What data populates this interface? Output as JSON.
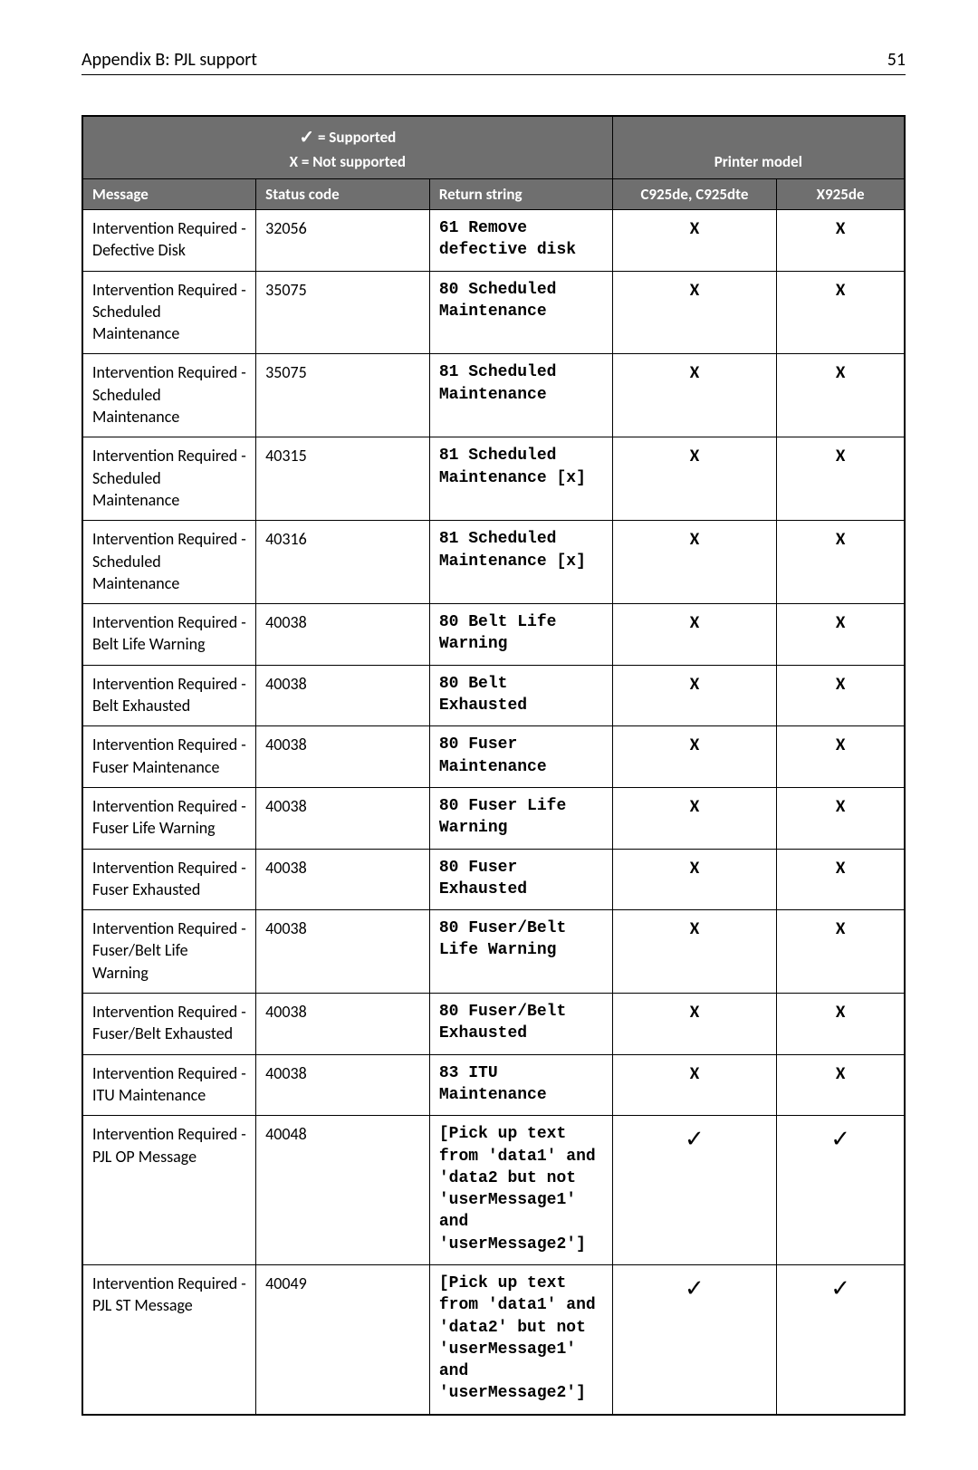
{
  "header": {
    "left": "Appendix B: PJL support",
    "page_number": "51"
  },
  "legend": {
    "supported_glyph": "✓",
    "supported_label": "= Supported",
    "not_supported_label": "X = Not supported",
    "printer_model_label": "Printer model"
  },
  "columns": {
    "message": "Message",
    "status": "Status code",
    "return": "Return string",
    "model1": "C925de, C925dte",
    "model2": "X925de"
  },
  "marks": {
    "x": "X",
    "check": "✓"
  },
  "rows": [
    {
      "message": "Intervention Required - Defective Disk",
      "status": "32056",
      "return": "61 Remove defective disk",
      "m1": "x",
      "m2": "x"
    },
    {
      "message": "Intervention Required - Scheduled Maintenance",
      "status": "35075",
      "return": "80 Scheduled Maintenance",
      "m1": "x",
      "m2": "x"
    },
    {
      "message": "Intervention Required - Scheduled Maintenance",
      "status": "35075",
      "return": "81 Scheduled Maintenance",
      "m1": "x",
      "m2": "x"
    },
    {
      "message": "Intervention Required - Scheduled Maintenance",
      "status": "40315",
      "return": "81 Scheduled Maintenance [x]",
      "m1": "x",
      "m2": "x"
    },
    {
      "message": "Intervention Required - Scheduled Maintenance",
      "status": "40316",
      "return": "81 Scheduled Maintenance [x]",
      "m1": "x",
      "m2": "x"
    },
    {
      "message": "Intervention Required - Belt Life Warning",
      "status": "40038",
      "return": "80 Belt Life Warning",
      "m1": "x",
      "m2": "x"
    },
    {
      "message": "Intervention Required - Belt Exhausted",
      "status": "40038",
      "return": "80 Belt Exhausted",
      "m1": "x",
      "m2": "x"
    },
    {
      "message": "Intervention Required - Fuser Maintenance",
      "status": "40038",
      "return": "80 Fuser Maintenance",
      "m1": "x",
      "m2": "x"
    },
    {
      "message": "Intervention Required - Fuser Life Warning",
      "status": "40038",
      "return": "80 Fuser Life Warning",
      "m1": "x",
      "m2": "x"
    },
    {
      "message": "Intervention Required - Fuser Exhausted",
      "status": "40038",
      "return": "80 Fuser Exhausted",
      "m1": "x",
      "m2": "x"
    },
    {
      "message": "Intervention Required - Fuser/Belt Life Warning",
      "status": "40038",
      "return": "80 Fuser/Belt Life Warning",
      "m1": "x",
      "m2": "x"
    },
    {
      "message": "Intervention Required - Fuser/Belt Exhausted",
      "status": "40038",
      "return": "80 Fuser/Belt Exhausted",
      "m1": "x",
      "m2": "x"
    },
    {
      "message": "Intervention Required - ITU Maintenance",
      "status": "40038",
      "return": "83 ITU Maintenance",
      "m1": "x",
      "m2": "x"
    },
    {
      "message": "Intervention Required - PJL OP Message",
      "status": "40048",
      "return": "[Pick up text from 'data1' and 'data2 but not 'userMessage1' and 'userMessage2']",
      "m1": "check",
      "m2": "check"
    },
    {
      "message": "Intervention Required - PJL ST Message",
      "status": "40049",
      "return": "[Pick up text from 'data1' and 'data2' but not 'userMessage1' and 'userMessage2']",
      "m1": "check",
      "m2": "check"
    }
  ]
}
